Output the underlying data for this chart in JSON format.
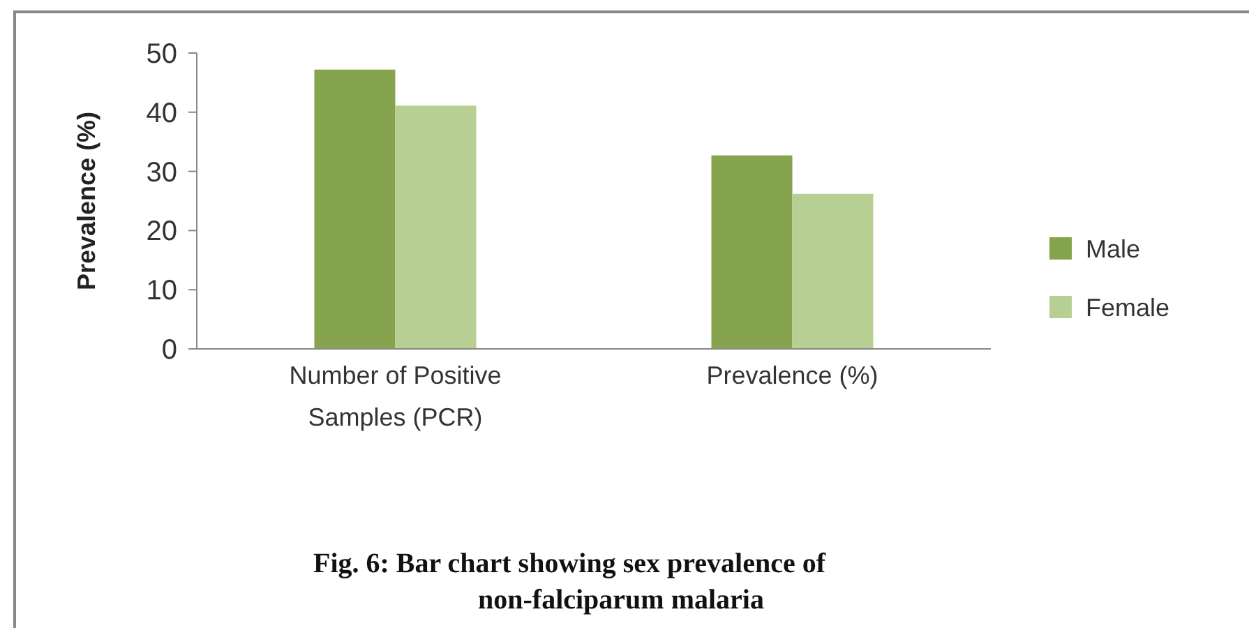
{
  "chart_data": {
    "type": "bar",
    "title": "Fig. 6: Bar chart showing sex prevalence of non-falciparum malaria",
    "ylabel": "Prevalence (%)",
    "categories": [
      "Number of Positive Samples (PCR)",
      "Prevalence (%)"
    ],
    "series": [
      {
        "name": "Male",
        "color": "#86a34e",
        "values": [
          47.2,
          32.7
        ]
      },
      {
        "name": "Female",
        "color": "#b7cf93",
        "values": [
          41.1,
          26.2
        ]
      }
    ],
    "ylim": [
      0,
      50
    ],
    "yticks": [
      0,
      10,
      20,
      30,
      40,
      50
    ],
    "grid": false,
    "legend": "right"
  }
}
